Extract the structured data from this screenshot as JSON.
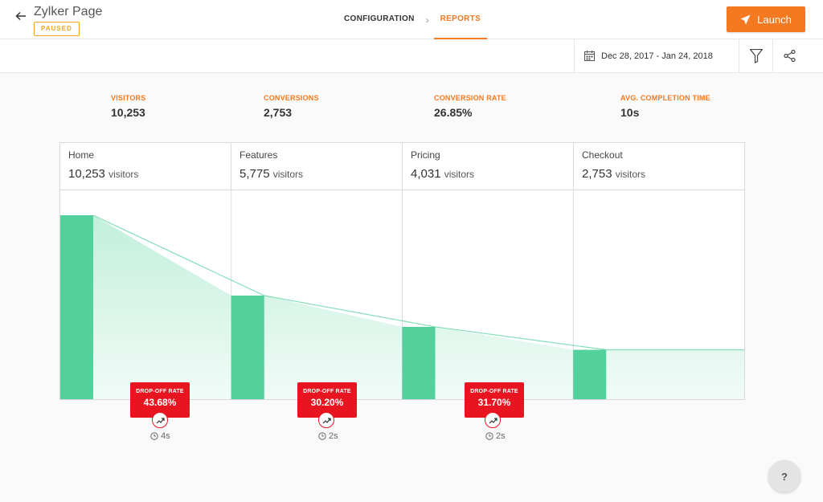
{
  "header": {
    "title": "Zylker Page",
    "status": "PAUSED",
    "tabs": [
      {
        "label": "CONFIGURATION"
      },
      {
        "label": "REPORTS"
      }
    ],
    "tab_separator": "›",
    "launch_label": "Launch",
    "accent_color": "#f47920"
  },
  "toolbar": {
    "date_range": "Dec 28, 2017 - Jan 24, 2018",
    "icons": [
      "calendar-icon",
      "filter-icon",
      "share-icon"
    ]
  },
  "metrics": [
    {
      "label": "VISITORS",
      "value": "10,253"
    },
    {
      "label": "CONVERSIONS",
      "value": "2,753"
    },
    {
      "label": "CONVERSION RATE",
      "value": "26.85%"
    },
    {
      "label": "AVG. COMPLETION TIME",
      "value": "10s"
    }
  ],
  "funnel": {
    "unit": "visitors",
    "steps": [
      {
        "name": "Home",
        "count": "10,253",
        "visitors": 10253
      },
      {
        "name": "Features",
        "count": "5,775",
        "visitors": 5775
      },
      {
        "name": "Pricing",
        "count": "4,031",
        "visitors": 4031
      },
      {
        "name": "Checkout",
        "count": "2,753",
        "visitors": 2753
      }
    ],
    "dropoffs": [
      {
        "label": "DROP-OFF RATE",
        "value": "43.68%",
        "time": "4s"
      },
      {
        "label": "DROP-OFF RATE",
        "value": "30.20%",
        "time": "2s"
      },
      {
        "label": "DROP-OFF RATE",
        "value": "31.70%",
        "time": "2s"
      }
    ],
    "bar_color": "#52d19c",
    "dropoff_color": "#e8141f"
  },
  "help_label": "?"
}
